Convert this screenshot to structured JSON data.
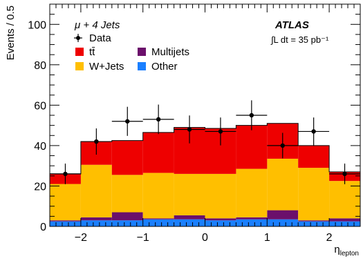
{
  "chart_data": {
    "type": "bar",
    "stacked": true,
    "x_edges": [
      -2.5,
      -2.0,
      -1.5,
      -1.0,
      -0.5,
      0.0,
      0.5,
      1.0,
      1.5,
      2.0,
      2.5
    ],
    "xlabel": "η",
    "xlabel_sub": "lepton",
    "ylabel": "Events / 0.5",
    "xlim": [
      -2.5,
      2.5
    ],
    "ylim": [
      0,
      110
    ],
    "x_ticks": [
      -2,
      -1,
      0,
      1,
      2
    ],
    "x_tick_labels": [
      "−2",
      "−1",
      "0",
      "1",
      "2"
    ],
    "y_ticks": [
      0,
      20,
      40,
      60,
      80,
      100
    ],
    "y_tick_labels": [
      "0",
      "20",
      "40",
      "60",
      "80",
      "100"
    ],
    "series": [
      {
        "name": "Other",
        "color": "#1a7fff",
        "values": [
          2.5,
          3.0,
          3.0,
          3.5,
          3.5,
          3.0,
          3.5,
          3.5,
          2.5,
          2.5
        ]
      },
      {
        "name": "Multijets",
        "color": "#6b0f6b",
        "values": [
          0.5,
          1.5,
          4.0,
          0.5,
          2.0,
          1.0,
          1.0,
          4.5,
          0.5,
          1.5
        ]
      },
      {
        "name": "W+Jets",
        "color": "#ffbf00",
        "values": [
          18.0,
          26.0,
          18.5,
          22.5,
          20.5,
          22.0,
          24.0,
          25.5,
          26.0,
          18.5
        ]
      },
      {
        "name": "tt̄",
        "color": "#ee0000",
        "values": [
          5.0,
          11.5,
          17.0,
          20.0,
          23.0,
          22.5,
          21.5,
          17.5,
          11.0,
          4.5
        ]
      }
    ],
    "data_points": {
      "name": "Data",
      "x": [
        -2.25,
        -1.75,
        -1.25,
        -0.75,
        -0.25,
        0.25,
        0.75,
        1.25,
        1.75,
        2.25
      ],
      "y": [
        26,
        42,
        52,
        53,
        48,
        47,
        55,
        40,
        47,
        26
      ],
      "err": [
        5.1,
        6.5,
        7.2,
        7.3,
        6.9,
        6.9,
        7.4,
        6.3,
        6.9,
        5.1
      ]
    },
    "legend": {
      "title": "μ + 4 Jets",
      "placement": "top-left",
      "entries": [
        {
          "label": "Data",
          "marker": "point"
        },
        {
          "label": "tt̄",
          "color": "#ee0000"
        },
        {
          "label": "Multijets",
          "color": "#6b0f6b"
        },
        {
          "label": "W+Jets",
          "color": "#ffbf00"
        },
        {
          "label": "Other",
          "color": "#1a7fff"
        }
      ]
    },
    "experiment_label": "ATLAS",
    "lumi_label": "∫L dt = 35 pb⁻¹"
  }
}
